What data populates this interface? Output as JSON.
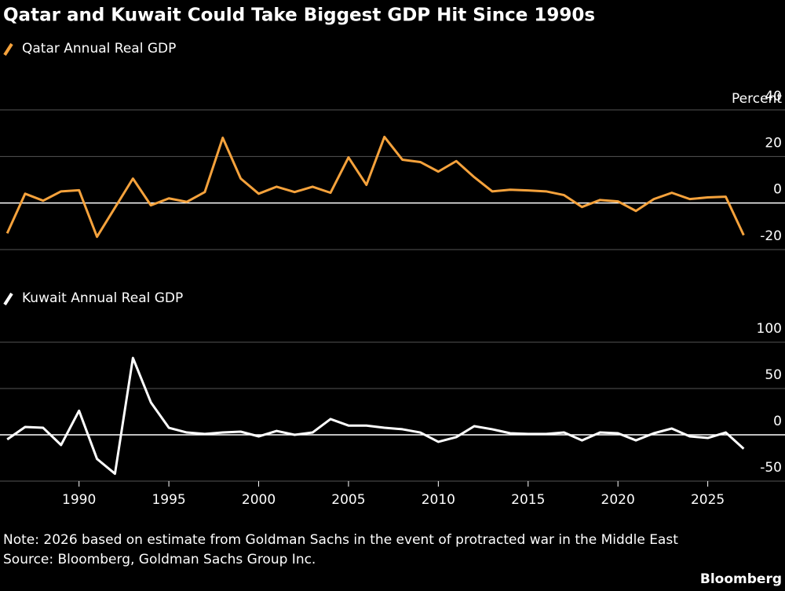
{
  "title": "Qatar and Kuwait Could Take Biggest GDP Hit Since 1990s",
  "chart_data": [
    {
      "type": "line",
      "ylabel": "Percent",
      "x": [
        1986,
        1987,
        1988,
        1989,
        1990,
        1991,
        1992,
        1993,
        1994,
        1995,
        1996,
        1997,
        1998,
        1999,
        2000,
        2001,
        2002,
        2003,
        2004,
        2005,
        2006,
        2007,
        2008,
        2009,
        2010,
        2011,
        2012,
        2013,
        2014,
        2015,
        2016,
        2017,
        2018,
        2019,
        2020,
        2021,
        2022,
        2023,
        2024,
        2025,
        2026,
        2027
      ],
      "xlim": [
        1985.6,
        2029.3
      ],
      "ylim": [
        -20,
        40
      ],
      "yticks": [
        -20,
        0,
        20,
        40
      ],
      "grid": true,
      "series": [
        {
          "name": "Qatar Annual Real GDP",
          "color": "#f5a23c",
          "values": [
            -13,
            4,
            1,
            5,
            5.5,
            -14.5,
            -2,
            10.5,
            -1,
            2,
            0.5,
            4.7,
            28,
            10.5,
            4,
            7,
            4.7,
            7,
            4.4,
            19.6,
            7.8,
            28.4,
            18.6,
            17.6,
            13.5,
            18,
            11.1,
            5,
            5.7,
            5.4,
            5,
            3.4,
            -1.7,
            1.3,
            0.7,
            -3.4,
            1.7,
            4.4,
            1.7,
            2.4,
            2.7,
            -13.8
          ]
        }
      ]
    },
    {
      "type": "line",
      "x": [
        1986,
        1987,
        1988,
        1989,
        1990,
        1991,
        1992,
        1993,
        1994,
        1995,
        1996,
        1997,
        1998,
        1999,
        2000,
        2001,
        2002,
        2003,
        2004,
        2005,
        2006,
        2007,
        2008,
        2009,
        2010,
        2011,
        2012,
        2013,
        2014,
        2015,
        2016,
        2017,
        2018,
        2019,
        2020,
        2021,
        2022,
        2023,
        2024,
        2025,
        2026,
        2027
      ],
      "xlim": [
        1985.6,
        2029.3
      ],
      "xticks": [
        1990,
        1995,
        2000,
        2005,
        2010,
        2015,
        2020,
        2025
      ],
      "ylim": [
        -50,
        100
      ],
      "yticks": [
        -50,
        0,
        50,
        100
      ],
      "grid": true,
      "series": [
        {
          "name": "Kuwait Annual Real GDP",
          "color": "#ffffff",
          "values": [
            -5,
            8.5,
            7.6,
            -11,
            26,
            -26,
            -42,
            83,
            35,
            7.6,
            2.5,
            1,
            2.5,
            3.4,
            -1.7,
            4.2,
            0,
            2.5,
            17,
            10,
            10,
            7.6,
            6,
            2.5,
            -7.6,
            -2.5,
            9.3,
            6,
            1.7,
            1,
            1,
            2.5,
            -6,
            2.5,
            1.7,
            -6,
            1.7,
            6.8,
            -1.7,
            -3.4,
            2.5,
            -15
          ]
        }
      ]
    }
  ],
  "note": "Note: 2026 based on estimate from Goldman Sachs in the event of protracted war in the Middle East",
  "source": "Source: Bloomberg, Goldman Sachs Group Inc.",
  "brand": "Bloomberg"
}
